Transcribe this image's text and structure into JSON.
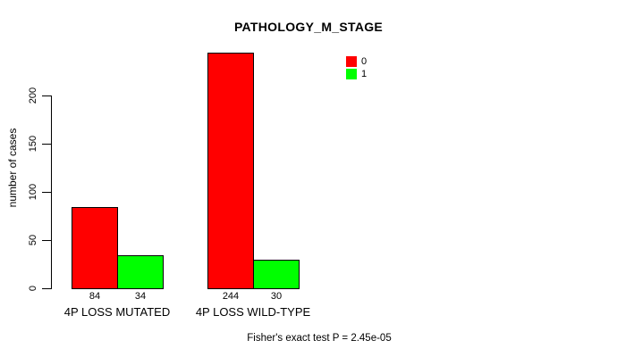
{
  "chart_data": {
    "type": "bar",
    "title": "PATHOLOGY_M_STAGE",
    "ylabel": "number of cases",
    "xlabel": "",
    "footnote": "Fisher's exact test P = 2.45e-05",
    "categories": [
      "4P LOSS MUTATED",
      "4P LOSS WILD-TYPE"
    ],
    "series": [
      {
        "name": "0",
        "color": "#ff0000",
        "values": [
          84,
          244
        ]
      },
      {
        "name": "1",
        "color": "#00ff00",
        "values": [
          34,
          30
        ]
      }
    ],
    "yticks": [
      0,
      50,
      100,
      150,
      200
    ],
    "ylim": [
      0,
      250
    ],
    "grid": false,
    "legend_position": "upper-right",
    "show_values_under_bars": true,
    "bar_border_color": "#000000",
    "background_color": "#ffffff"
  }
}
